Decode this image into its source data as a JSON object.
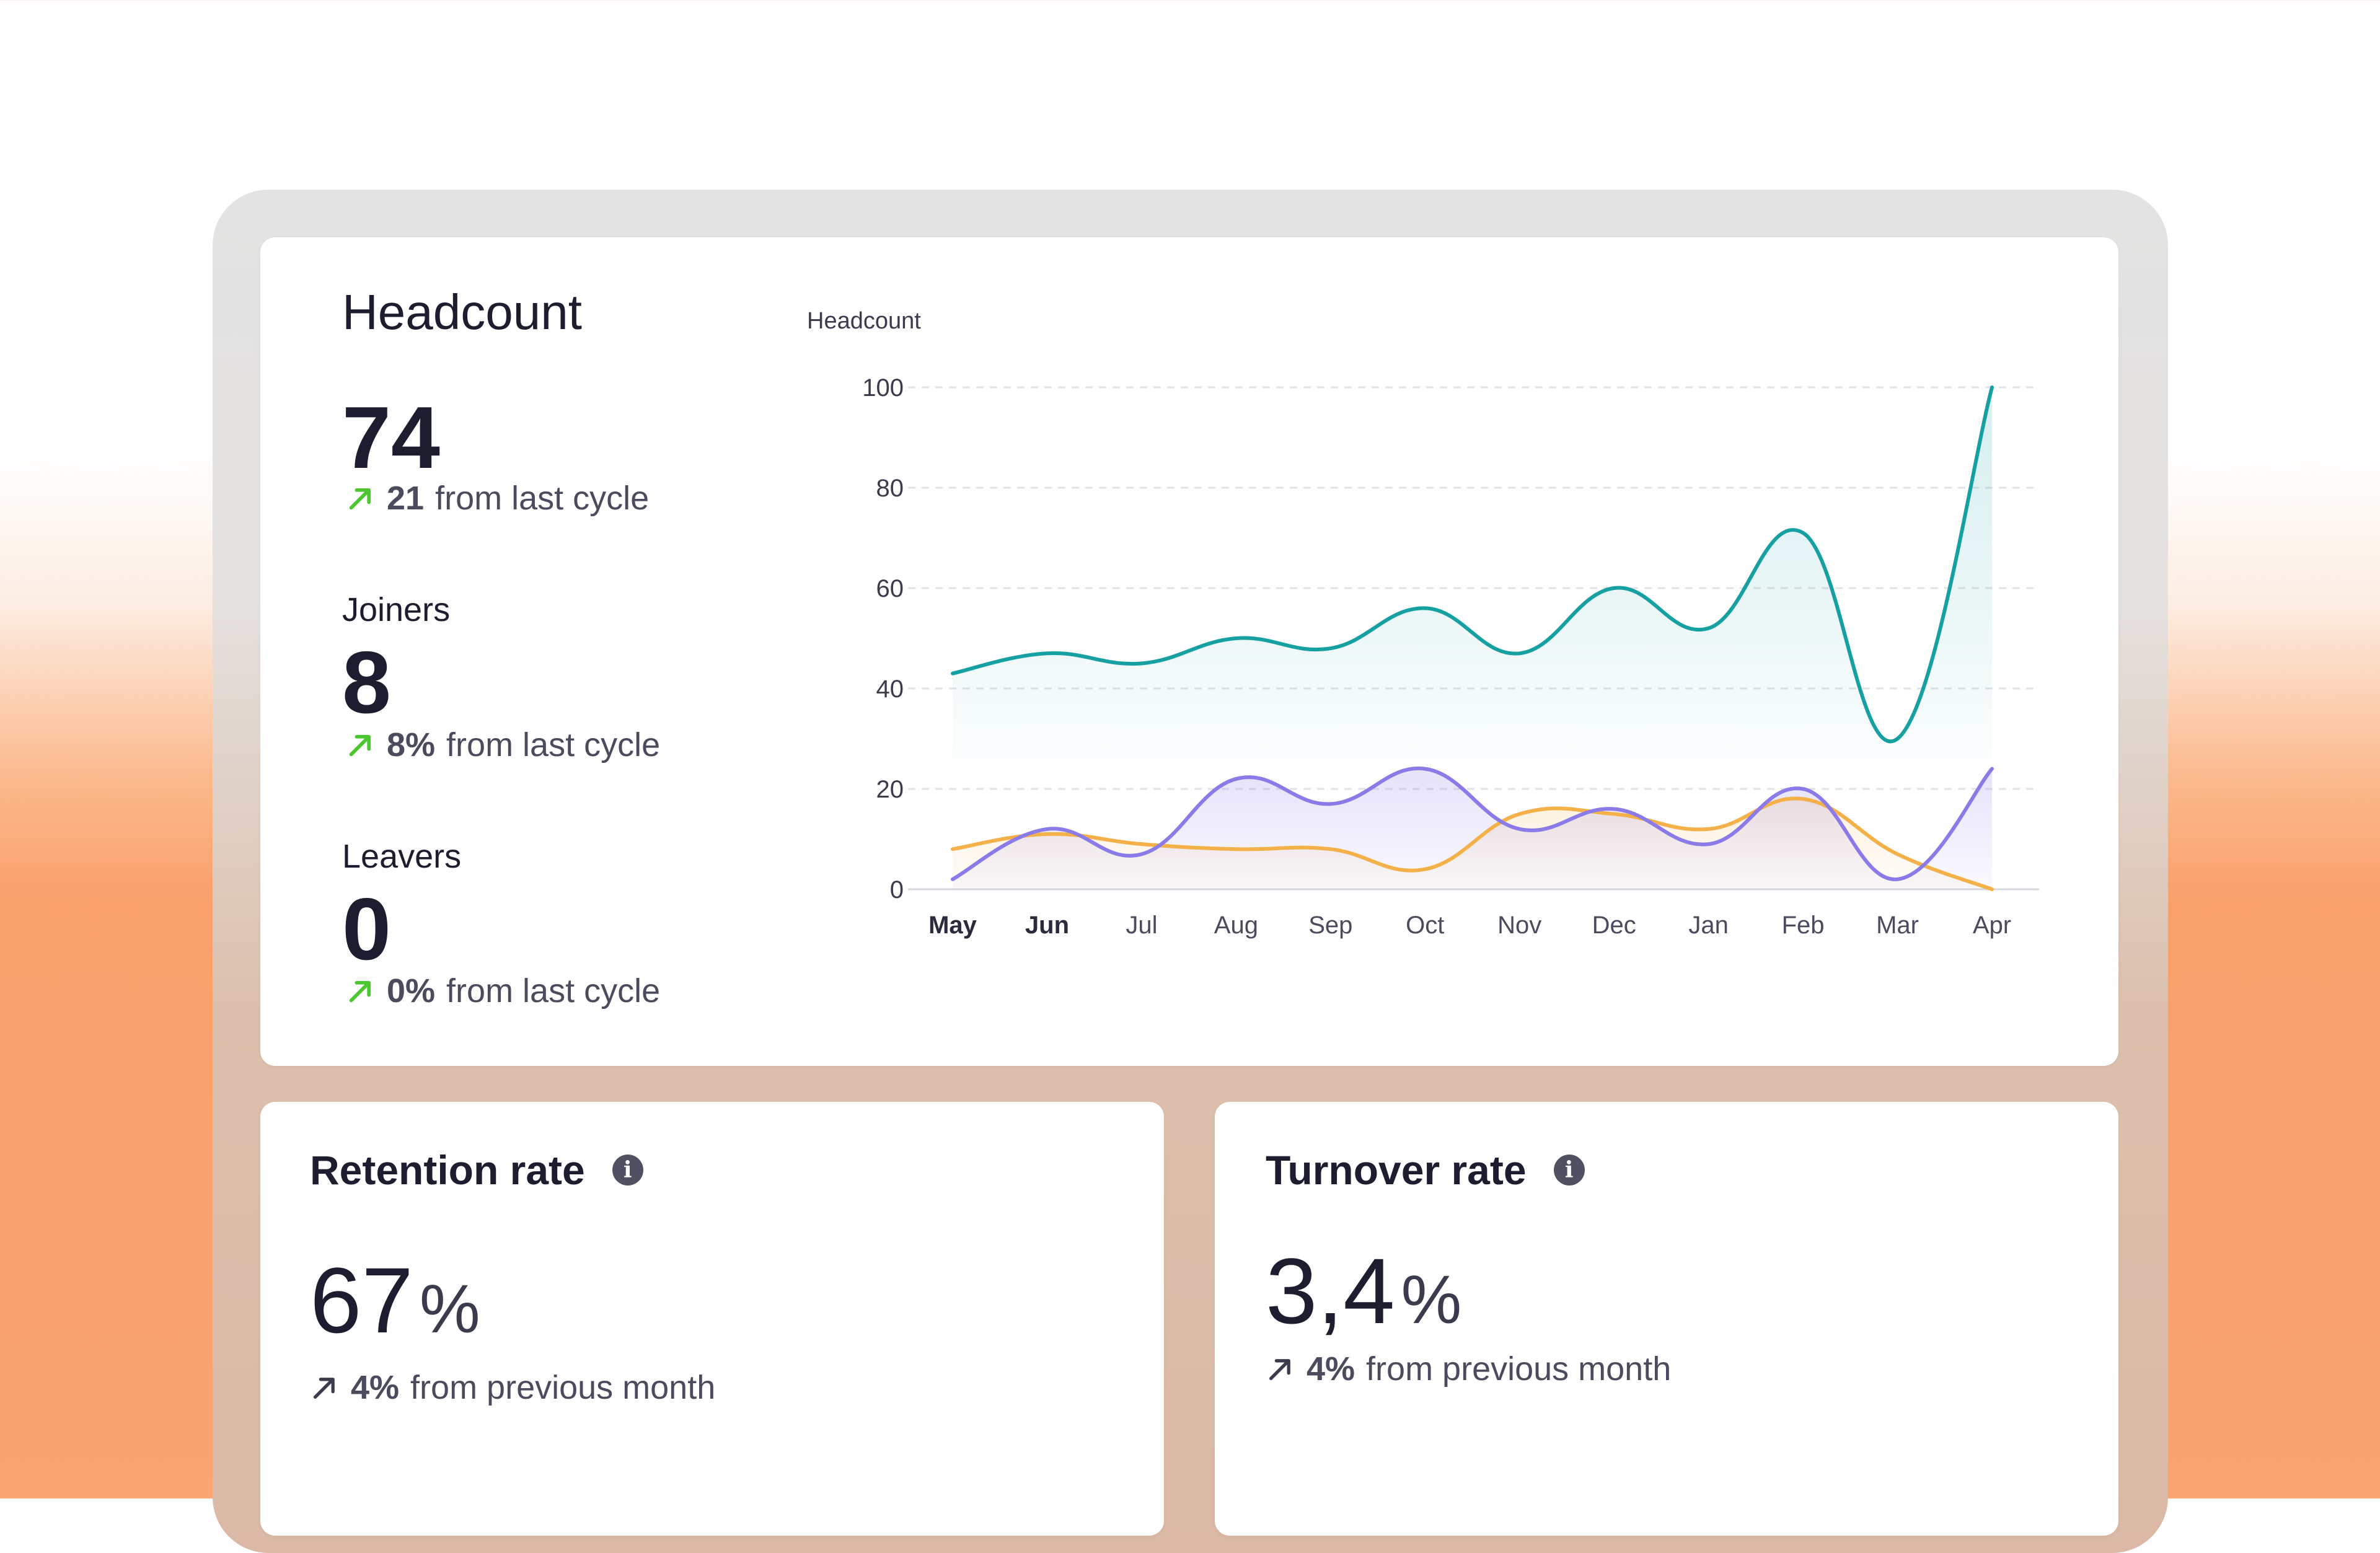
{
  "headcount": {
    "title": "Headcount",
    "value": "74",
    "change": "21",
    "change_text": "from last cycle"
  },
  "joiners": {
    "label": "Joiners",
    "value": "8",
    "change": "8%",
    "change_text": "from last cycle"
  },
  "leavers": {
    "label": "Leavers",
    "value": "0",
    "change": "0%",
    "change_text": "from last cycle"
  },
  "retention": {
    "title": "Retention rate",
    "value": "67",
    "unit": "%",
    "change": "4%",
    "change_text": "from previous month"
  },
  "turnover": {
    "title": "Turnover rate",
    "value": "3,4",
    "unit": "%",
    "change": "4%",
    "change_text": "from previous month"
  },
  "colors": {
    "headcount": "#17a0a2",
    "joiners": "#8a7be8",
    "leavers": "#f4b14a",
    "up_arrow": "#4cc72f",
    "neutral_arrow": "#3a3b4c"
  },
  "chart_data": {
    "type": "line",
    "ylabel": "Headcount",
    "ylim": [
      0,
      100
    ],
    "yticks": [
      0,
      20,
      40,
      60,
      80,
      100
    ],
    "grid": true,
    "categories": [
      "May",
      "Jun",
      "Jul",
      "Aug",
      "Sep",
      "Oct",
      "Nov",
      "Dec",
      "Jan",
      "Feb",
      "Mar",
      "Apr"
    ],
    "series": [
      {
        "key": "headcount",
        "values": [
          43,
          47,
          45,
          50,
          48,
          56,
          47,
          60,
          52,
          71,
          30,
          100
        ]
      },
      {
        "key": "joiners",
        "values": [
          2,
          12,
          7,
          22,
          17,
          24,
          12,
          16,
          9,
          20,
          2,
          24
        ]
      },
      {
        "key": "leavers",
        "values": [
          8,
          11,
          9,
          8,
          8,
          4,
          15,
          15,
          12,
          18,
          7,
          0
        ]
      }
    ]
  }
}
